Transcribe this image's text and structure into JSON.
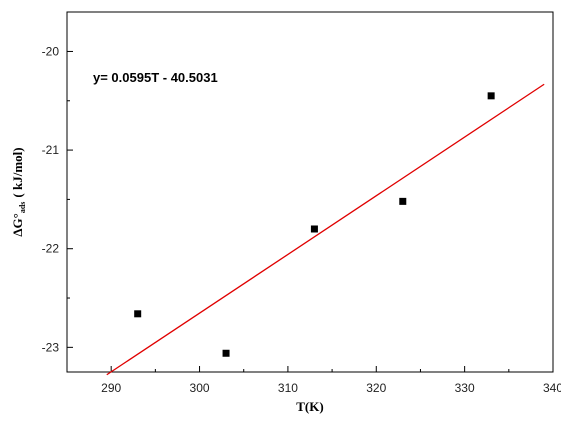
{
  "chart_data": {
    "type": "scatter",
    "title": "",
    "xlabel": "T(K)",
    "ylabel_main": "ΔG°",
    "ylabel_sub": "ads",
    "ylabel_unit": "( kJ/mol)",
    "xlim": [
      285,
      340
    ],
    "ylim": [
      -23.25,
      -19.6
    ],
    "xticks": [
      290,
      300,
      310,
      320,
      330,
      340
    ],
    "yticks": [
      -20,
      -21,
      -22,
      -23
    ],
    "x": [
      293,
      303,
      313,
      323,
      333
    ],
    "y": [
      -22.66,
      -23.06,
      -21.8,
      -21.52,
      -20.45
    ],
    "marker_color": "#000000",
    "fit": {
      "equation": "y= 0.0595T - 40.5031",
      "slope": 0.0595,
      "intercept": -40.5031,
      "x_range": [
        289.5,
        339
      ],
      "color": "#e00000"
    },
    "grid": false,
    "legend": "none"
  }
}
